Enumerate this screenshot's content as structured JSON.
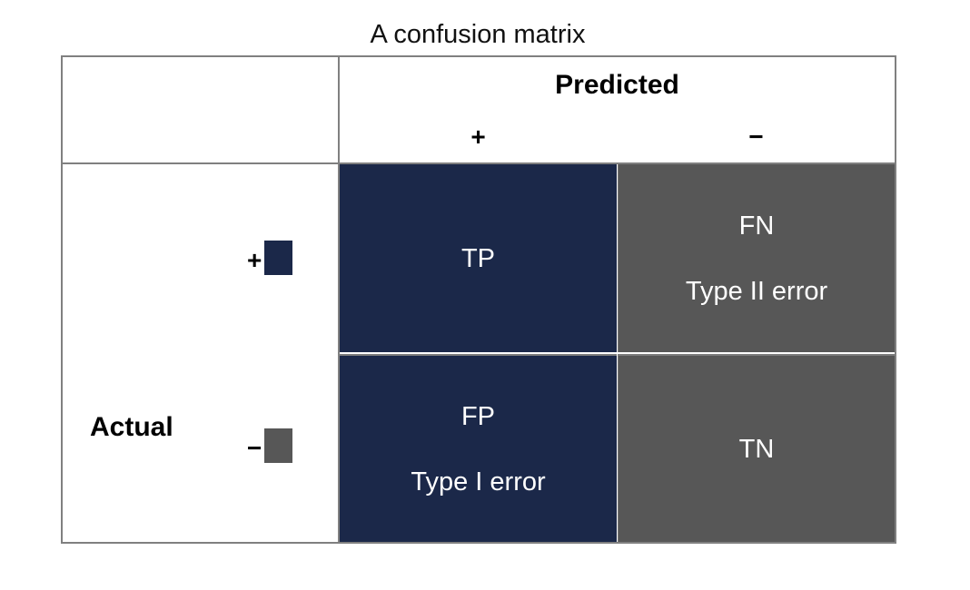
{
  "title": "A confusion matrix",
  "colors": {
    "positive": "#1b2849",
    "negative": "#575757",
    "border": "#808080"
  },
  "header": {
    "predicted_label": "Predicted",
    "pos_label": "+",
    "neg_label": "−"
  },
  "rows": {
    "actual_label": "Actual",
    "pos_label": "+",
    "neg_label": "−"
  },
  "cells": {
    "tp": {
      "label": "TP"
    },
    "fn": {
      "label": "FN",
      "error": "Type II error"
    },
    "fp": {
      "label": "FP",
      "error": "Type I error"
    },
    "tn": {
      "label": "TN"
    }
  }
}
